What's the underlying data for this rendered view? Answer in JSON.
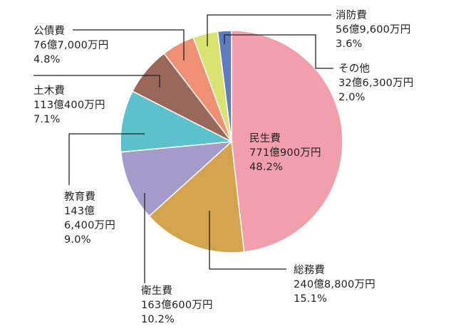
{
  "chart_data": {
    "type": "pie",
    "slices": [
      {
        "name": "民生費",
        "amount": "771億900万円",
        "value": 48.2,
        "percent": "48.2%",
        "color": "#f19fad"
      },
      {
        "name": "総務費",
        "amount": "240億8,800万円",
        "value": 15.1,
        "percent": "15.1%",
        "color": "#d4a34e"
      },
      {
        "name": "衛生費",
        "amount": "163億600万円",
        "value": 10.2,
        "percent": "10.2%",
        "color": "#a59bcb"
      },
      {
        "name": "教育費",
        "amount_lines": [
          "143億",
          "6,400万円"
        ],
        "value": 9.0,
        "percent": "9.0%",
        "color": "#5bc1cd"
      },
      {
        "name": "土木費",
        "amount": "113億400万円",
        "value": 7.1,
        "percent": "7.1%",
        "color": "#9a685a"
      },
      {
        "name": "公債費",
        "amount": "76億7,000万円",
        "value": 4.8,
        "percent": "4.8%",
        "color": "#ef8f73"
      },
      {
        "name": "消防費",
        "amount": "56億9,600万円",
        "value": 3.6,
        "percent": "3.6%",
        "color": "#dae36f"
      },
      {
        "name": "その他",
        "amount": "32億6,300万円",
        "value": 2.0,
        "percent": "2.0%",
        "color": "#5b7dbf"
      }
    ],
    "start": "12 o'clock",
    "direction": "clockwise",
    "legend": "none"
  }
}
